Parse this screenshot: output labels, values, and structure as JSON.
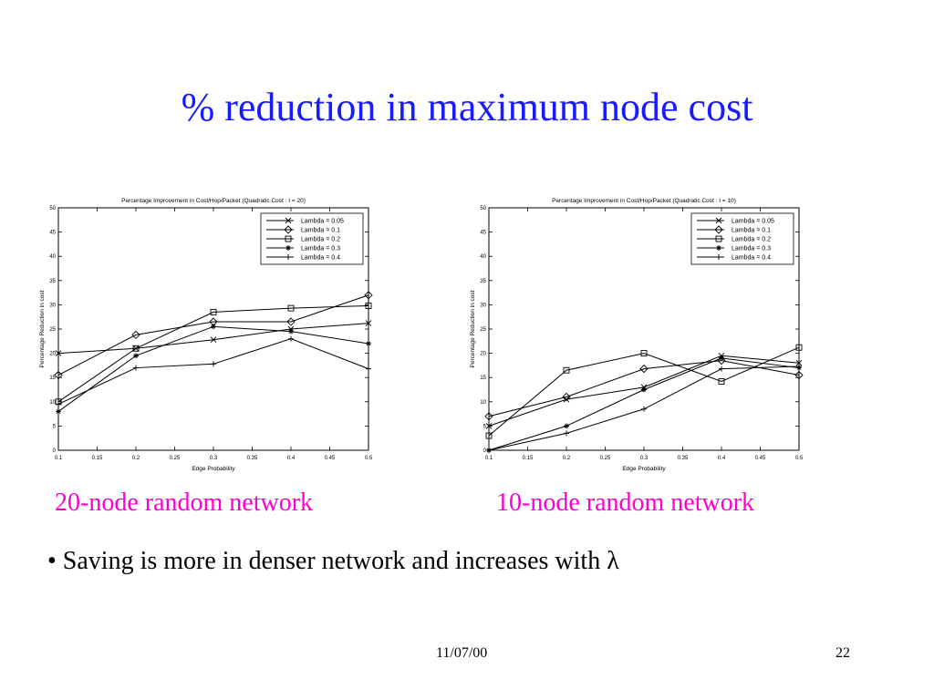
{
  "slide": {
    "title": "% reduction in maximum node cost",
    "captions": [
      "20-node random network",
      "10-node random network"
    ],
    "bullet": "• Saving is more in denser network and increases with λ",
    "footer_date": "11/07/00",
    "page_number": "22"
  },
  "chart_data": [
    {
      "type": "line",
      "title": "Percentage Improvement in Cost/Hop/Packet (Quadratic Cost : I = 20)",
      "xlabel": "Edge Probability",
      "ylabel": "Percentage Reduction in cost",
      "xlim": [
        0.1,
        0.5
      ],
      "ylim": [
        0,
        50
      ],
      "xticks": [
        "0.1",
        "0.15",
        "0.2",
        "0.25",
        "0.3",
        "0.35",
        "0.4",
        "0.45",
        "0.5"
      ],
      "yticks": [
        "0",
        "5",
        "10",
        "15",
        "20",
        "25",
        "30",
        "35",
        "40",
        "45",
        "50"
      ],
      "grid": false,
      "legend_position": "top-right",
      "x": [
        0.1,
        0.2,
        0.3,
        0.4,
        0.5
      ],
      "series": [
        {
          "name": "Lambda = 0.05",
          "marker": "x",
          "values": [
            20,
            21,
            22.8,
            25,
            26.2
          ]
        },
        {
          "name": "Lambda = 0.1",
          "marker": "diamond",
          "values": [
            15.5,
            23.8,
            26.5,
            26.5,
            32
          ]
        },
        {
          "name": "Lambda = 0.2",
          "marker": "square",
          "values": [
            10,
            21,
            28.5,
            29.3,
            29.8
          ]
        },
        {
          "name": "Lambda = 0.3",
          "marker": "star",
          "values": [
            8,
            19.5,
            25.5,
            24.5,
            22
          ]
        },
        {
          "name": "Lambda = 0.4",
          "marker": "plus",
          "values": [
            9.5,
            17,
            17.8,
            23,
            16.8
          ]
        }
      ]
    },
    {
      "type": "line",
      "title": "Percentage Improvement in Cost/Hop/Packet (Quadratic Cost : I = 10)",
      "xlabel": "Edge Probability",
      "ylabel": "Percentage Reduction in cost",
      "xlim": [
        0.1,
        0.5
      ],
      "ylim": [
        0,
        50
      ],
      "xticks": [
        "0.1",
        "0.15",
        "0.2",
        "0.25",
        "0.3",
        "0.35",
        "0.4",
        "0.45",
        "0.5"
      ],
      "yticks": [
        "0",
        "5",
        "10",
        "15",
        "20",
        "25",
        "30",
        "35",
        "40",
        "45",
        "50"
      ],
      "grid": false,
      "legend_position": "top-right",
      "x": [
        0.1,
        0.2,
        0.3,
        0.4,
        0.5
      ],
      "series": [
        {
          "name": "Lambda = 0.05",
          "marker": "x",
          "values": [
            5,
            10.5,
            13,
            19.5,
            18
          ]
        },
        {
          "name": "Lambda = 0.1",
          "marker": "diamond",
          "values": [
            7,
            11,
            16.8,
            18.5,
            15.5
          ]
        },
        {
          "name": "Lambda = 0.2",
          "marker": "square",
          "values": [
            3,
            16.5,
            20,
            14.2,
            21.2
          ]
        },
        {
          "name": "Lambda = 0.3",
          "marker": "star",
          "values": [
            0,
            5,
            12.5,
            19,
            17
          ]
        },
        {
          "name": "Lambda = 0.4",
          "marker": "plus",
          "values": [
            0,
            3.5,
            8.5,
            16.8,
            17.3
          ]
        }
      ]
    }
  ]
}
